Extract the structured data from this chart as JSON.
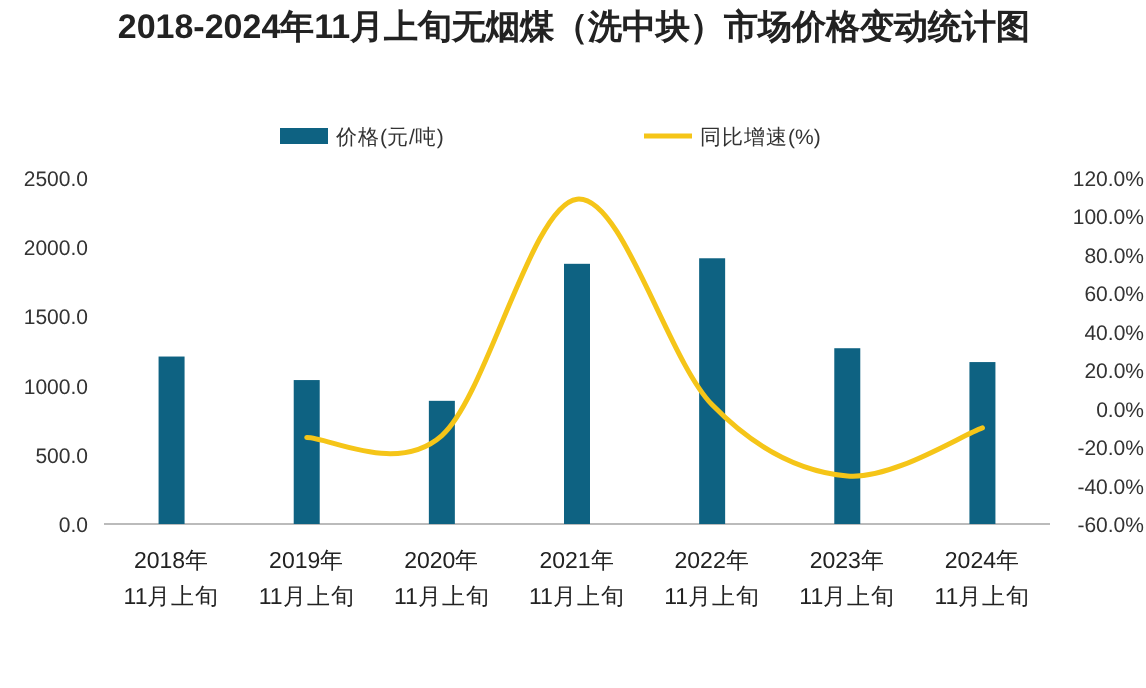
{
  "chart_data": {
    "type": "bar",
    "title": "2018-2024年11月上旬无烟煤（洗中块）市场价格变动统计图",
    "categories": [
      "2018年\n11月上旬",
      "2019年\n11月上旬",
      "2020年\n11月上旬",
      "2021年\n11月上旬",
      "2022年\n11月上旬",
      "2023年\n11月上旬",
      "2024年\n11月上旬"
    ],
    "series": [
      {
        "name": "价格(元/吨)",
        "color": "#0e6282",
        "values": [
          1210,
          1040,
          890,
          1880,
          1920,
          1270,
          1170
        ]
      },
      {
        "name": "同比增速(%)",
        "type": "line",
        "axis": "y2",
        "color": "#f5c518",
        "values": [
          null,
          -15,
          -14,
          109,
          2,
          -35,
          -10
        ]
      }
    ],
    "ylim": [
      0,
      2500
    ],
    "yticks": [
      {
        "value": 0,
        "label": "0.0"
      },
      {
        "value": 500,
        "label": "500.0"
      },
      {
        "value": 1000,
        "label": "1000.0"
      },
      {
        "value": 1500,
        "label": "1500.0"
      },
      {
        "value": 2000,
        "label": "2000.0"
      },
      {
        "value": 2500,
        "label": "2500.0"
      }
    ],
    "y2lim": [
      -60,
      120
    ],
    "y2ticks": [
      {
        "value": -60,
        "label": "-60.0%"
      },
      {
        "value": -40,
        "label": "-40.0%"
      },
      {
        "value": -20,
        "label": "-20.0%"
      },
      {
        "value": 0,
        "label": "0.0%"
      },
      {
        "value": 20,
        "label": "20.0%"
      },
      {
        "value": 40,
        "label": "40.0%"
      },
      {
        "value": 60,
        "label": "60.0%"
      },
      {
        "value": 80,
        "label": "80.0%"
      },
      {
        "value": 100,
        "label": "100.0%"
      },
      {
        "value": 120,
        "label": "120.0%"
      }
    ],
    "legend": "top",
    "grid": false,
    "marker": "none"
  }
}
